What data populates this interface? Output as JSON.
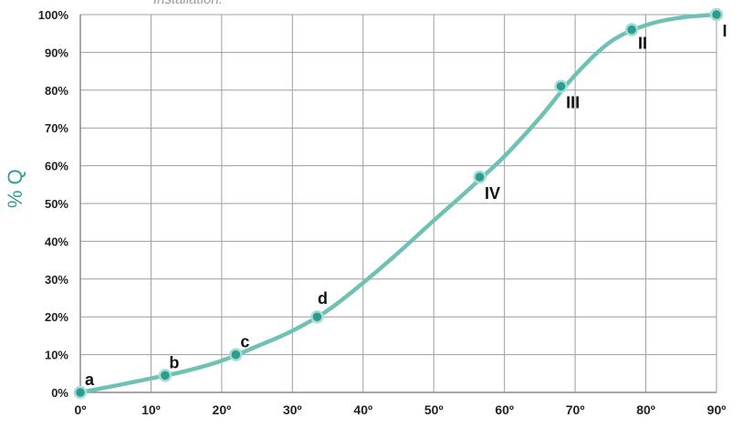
{
  "caption_fragment": "Installation.",
  "chart_data": {
    "type": "line",
    "title": "",
    "xlabel": "",
    "ylabel": "% Q",
    "xlim": [
      0,
      90
    ],
    "ylim": [
      0,
      100
    ],
    "grid": true,
    "x_ticks": [
      "0º",
      "10º",
      "20º",
      "30º",
      "40º",
      "50º",
      "60º",
      "70º",
      "80º",
      "90º"
    ],
    "y_ticks": [
      "0%",
      "10%",
      "20%",
      "30%",
      "40%",
      "50%",
      "60%",
      "70%",
      "80%",
      "90%",
      "100%"
    ],
    "curve": {
      "x": [
        0,
        5,
        10,
        15,
        20,
        25,
        30,
        35,
        40,
        45,
        50,
        55,
        60,
        65,
        70,
        75,
        80,
        85,
        90
      ],
      "y": [
        0,
        1.8,
        3.7,
        5.7,
        8.4,
        12.2,
        16.3,
        21.7,
        29.0,
        37.0,
        45.5,
        53.8,
        62.5,
        72.7,
        84.0,
        92.8,
        97.2,
        99.2,
        100
      ]
    },
    "labeled_points": [
      {
        "label": "a",
        "x": 0,
        "y": 0
      },
      {
        "label": "b",
        "x": 12,
        "y": 4.5
      },
      {
        "label": "c",
        "x": 22,
        "y": 10
      },
      {
        "label": "d",
        "x": 33.5,
        "y": 20
      },
      {
        "label": "IV",
        "x": 56.5,
        "y": 57
      },
      {
        "label": "III",
        "x": 68,
        "y": 81
      },
      {
        "label": "II",
        "x": 78,
        "y": 96
      },
      {
        "label": "I",
        "x": 90,
        "y": 100
      }
    ],
    "colors": {
      "curve": "#6ec1b3",
      "marker_fill": "#2a9d8f",
      "marker_stroke": "#a8ddd4",
      "grid": "#9e9e9e",
      "axis": "#8a8a8a",
      "ylabel": "#2f9e8e"
    }
  }
}
